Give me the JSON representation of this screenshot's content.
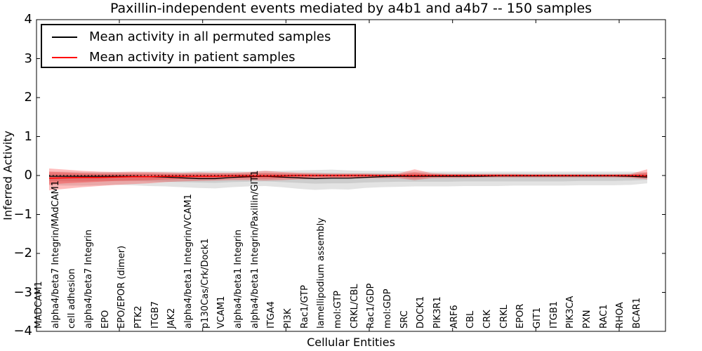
{
  "title": "Paxillin-independent events mediated by a4b1 and a4b7 -- 150 samples",
  "axes": {
    "ylabel": "Inferred Activity",
    "xlabel": "Cellular Entities",
    "ytick_labels": [
      "4",
      "3",
      "2",
      "1",
      "0",
      "−1",
      "−2",
      "−3",
      "−4"
    ],
    "ytick_values": [
      4,
      3,
      2,
      1,
      0,
      -1,
      -2,
      -3,
      -4
    ],
    "ylim": [
      -4,
      4
    ]
  },
  "legend": {
    "items": [
      {
        "label": "Mean activity in all permuted samples",
        "color": "#000000"
      },
      {
        "label": "Mean activity in patient samples",
        "color": "#ff0000"
      }
    ]
  },
  "colors": {
    "permuted_line": "#000000",
    "patient_line": "#ff0000",
    "permuted_band": "rgba(128,128,128,0.22)",
    "patient_band": "rgba(255,0,0,0.26)",
    "zero_line": "#000000",
    "frame": "#000000"
  },
  "chart_data": {
    "type": "line",
    "title": "Paxillin-independent events mediated by a4b1 and a4b7 -- 150 samples",
    "xlabel": "Cellular Entities",
    "ylabel": "Inferred Activity",
    "ylim": [
      -4,
      4
    ],
    "grid": false,
    "legend_position": "upper left",
    "zero_line": {
      "y": 0,
      "style": "dotted",
      "color": "#000000"
    },
    "categories": [
      "MADCAM1",
      "alpha4/beta7 Integrin/MAdCAM1",
      "cell adhesion",
      "alpha4/beta7 Integrin",
      "EPO",
      "EPO/EPOR (dimer)",
      "PTK2",
      "ITGB7",
      "JAK2",
      "alpha4/beta1 Integrin/VCAM1",
      "p130Cas/Crk/Dock1",
      "VCAM1",
      "alpha4/beta1 Integrin",
      "alpha4/beta1 Integrin/Paxillin/GIT1",
      "ITGA4",
      "PI3K",
      "Rac1/GTP",
      "lamellipodium assembly",
      "mol:GTP",
      "CRKL/CBL",
      "Rac1/GDP",
      "mol:GDP",
      "SRC",
      "DOCK1",
      "PIK3R1",
      "ARF6",
      "CBL",
      "CRK",
      "CRKL",
      "EPOR",
      "GIT1",
      "ITGB1",
      "PIK3CA",
      "PXN",
      "RAC1",
      "RHOA",
      "BCAR1"
    ],
    "series": [
      {
        "name": "Mean activity in all permuted samples",
        "color": "#000000",
        "values": [
          -0.02,
          -0.02,
          -0.02,
          -0.02,
          -0.02,
          -0.02,
          -0.03,
          -0.04,
          -0.06,
          -0.08,
          -0.08,
          -0.05,
          -0.03,
          -0.02,
          -0.04,
          -0.06,
          -0.08,
          -0.07,
          -0.07,
          -0.05,
          -0.03,
          -0.02,
          -0.02,
          -0.02,
          -0.02,
          -0.02,
          -0.02,
          -0.01,
          -0.01,
          -0.01,
          -0.01,
          -0.01,
          -0.01,
          -0.01,
          -0.01,
          -0.02,
          -0.04
        ]
      },
      {
        "name": "Mean activity in patient samples",
        "color": "#ff0000",
        "values": [
          -0.07,
          -0.06,
          -0.05,
          -0.05,
          -0.04,
          -0.03,
          -0.03,
          -0.02,
          -0.02,
          -0.02,
          -0.02,
          -0.01,
          -0.01,
          -0.01,
          -0.01,
          0.0,
          0.0,
          0.0,
          0.0,
          0.0,
          0.0,
          0.0,
          0.0,
          0.0,
          0.0,
          0.0,
          0.0,
          0.0,
          0.0,
          0.0,
          0.0,
          0.0,
          0.0,
          0.0,
          0.0,
          0.0,
          -0.01
        ]
      }
    ],
    "bands": [
      {
        "name": "permuted-band-outer",
        "series": "Mean activity in all permuted samples",
        "upper": [
          0.1,
          0.1,
          0.09,
          0.09,
          0.09,
          0.09,
          0.1,
          0.1,
          0.1,
          0.11,
          0.12,
          0.11,
          0.1,
          0.12,
          0.12,
          0.13,
          0.14,
          0.15,
          0.13,
          0.12,
          0.12,
          0.11,
          0.1,
          0.1,
          0.1,
          0.1,
          0.1,
          0.1,
          0.1,
          0.1,
          0.1,
          0.1,
          0.1,
          0.1,
          0.1,
          0.1,
          0.08
        ],
        "lower": [
          -0.25,
          -0.26,
          -0.26,
          -0.25,
          -0.24,
          -0.25,
          -0.27,
          -0.28,
          -0.3,
          -0.32,
          -0.33,
          -0.3,
          -0.28,
          -0.27,
          -0.3,
          -0.34,
          -0.37,
          -0.35,
          -0.36,
          -0.32,
          -0.3,
          -0.29,
          -0.28,
          -0.28,
          -0.28,
          -0.27,
          -0.27,
          -0.27,
          -0.26,
          -0.26,
          -0.26,
          -0.26,
          -0.25,
          -0.25,
          -0.25,
          -0.24,
          -0.2
        ]
      },
      {
        "name": "permuted-band-inner",
        "series": "Mean activity in all permuted samples",
        "upper": [
          0.05,
          0.05,
          0.05,
          0.05,
          0.05,
          0.05,
          0.05,
          0.05,
          0.05,
          0.06,
          0.06,
          0.06,
          0.05,
          0.06,
          0.06,
          0.06,
          0.07,
          0.07,
          0.06,
          0.06,
          0.06,
          0.05,
          0.05,
          0.05,
          0.05,
          0.05,
          0.05,
          0.05,
          0.05,
          0.05,
          0.05,
          0.05,
          0.05,
          0.05,
          0.05,
          0.05,
          0.04
        ],
        "lower": [
          -0.14,
          -0.15,
          -0.15,
          -0.14,
          -0.14,
          -0.14,
          -0.15,
          -0.16,
          -0.17,
          -0.18,
          -0.19,
          -0.17,
          -0.16,
          -0.15,
          -0.17,
          -0.19,
          -0.21,
          -0.2,
          -0.2,
          -0.18,
          -0.17,
          -0.16,
          -0.16,
          -0.16,
          -0.16,
          -0.15,
          -0.15,
          -0.15,
          -0.15,
          -0.15,
          -0.15,
          -0.15,
          -0.14,
          -0.14,
          -0.14,
          -0.13,
          -0.11
        ]
      },
      {
        "name": "patient-band-outer",
        "series": "Mean activity in patient samples",
        "upper": [
          0.18,
          0.15,
          0.12,
          0.1,
          0.09,
          0.1,
          0.09,
          0.08,
          0.07,
          0.08,
          0.07,
          0.07,
          0.09,
          0.12,
          0.09,
          0.07,
          0.06,
          0.05,
          0.05,
          0.05,
          0.04,
          0.05,
          0.16,
          0.06,
          0.04,
          0.04,
          0.04,
          0.04,
          0.04,
          0.03,
          0.03,
          0.03,
          0.03,
          0.03,
          0.03,
          0.04,
          0.16
        ],
        "lower": [
          -0.38,
          -0.34,
          -0.3,
          -0.27,
          -0.24,
          -0.22,
          -0.2,
          -0.17,
          -0.15,
          -0.14,
          -0.13,
          -0.12,
          -0.12,
          -0.13,
          -0.12,
          -0.1,
          -0.09,
          -0.08,
          -0.08,
          -0.07,
          -0.07,
          -0.07,
          -0.12,
          -0.07,
          -0.06,
          -0.06,
          -0.05,
          -0.05,
          -0.05,
          -0.05,
          -0.05,
          -0.05,
          -0.05,
          -0.05,
          -0.05,
          -0.06,
          -0.1
        ]
      },
      {
        "name": "patient-band-inner",
        "series": "Mean activity in patient samples",
        "upper": [
          0.1,
          0.08,
          0.06,
          0.05,
          0.05,
          0.05,
          0.05,
          0.04,
          0.04,
          0.04,
          0.04,
          0.04,
          0.05,
          0.06,
          0.05,
          0.04,
          0.03,
          0.03,
          0.03,
          0.03,
          0.02,
          0.03,
          0.08,
          0.03,
          0.02,
          0.02,
          0.02,
          0.02,
          0.02,
          0.02,
          0.02,
          0.02,
          0.02,
          0.02,
          0.02,
          0.02,
          0.08
        ],
        "lower": [
          -0.23,
          -0.2,
          -0.18,
          -0.16,
          -0.14,
          -0.13,
          -0.12,
          -0.1,
          -0.09,
          -0.08,
          -0.08,
          -0.07,
          -0.07,
          -0.08,
          -0.07,
          -0.06,
          -0.05,
          -0.05,
          -0.05,
          -0.04,
          -0.04,
          -0.04,
          -0.07,
          -0.04,
          -0.04,
          -0.04,
          -0.03,
          -0.03,
          -0.03,
          -0.03,
          -0.03,
          -0.03,
          -0.03,
          -0.03,
          -0.03,
          -0.04,
          -0.06
        ]
      }
    ]
  }
}
